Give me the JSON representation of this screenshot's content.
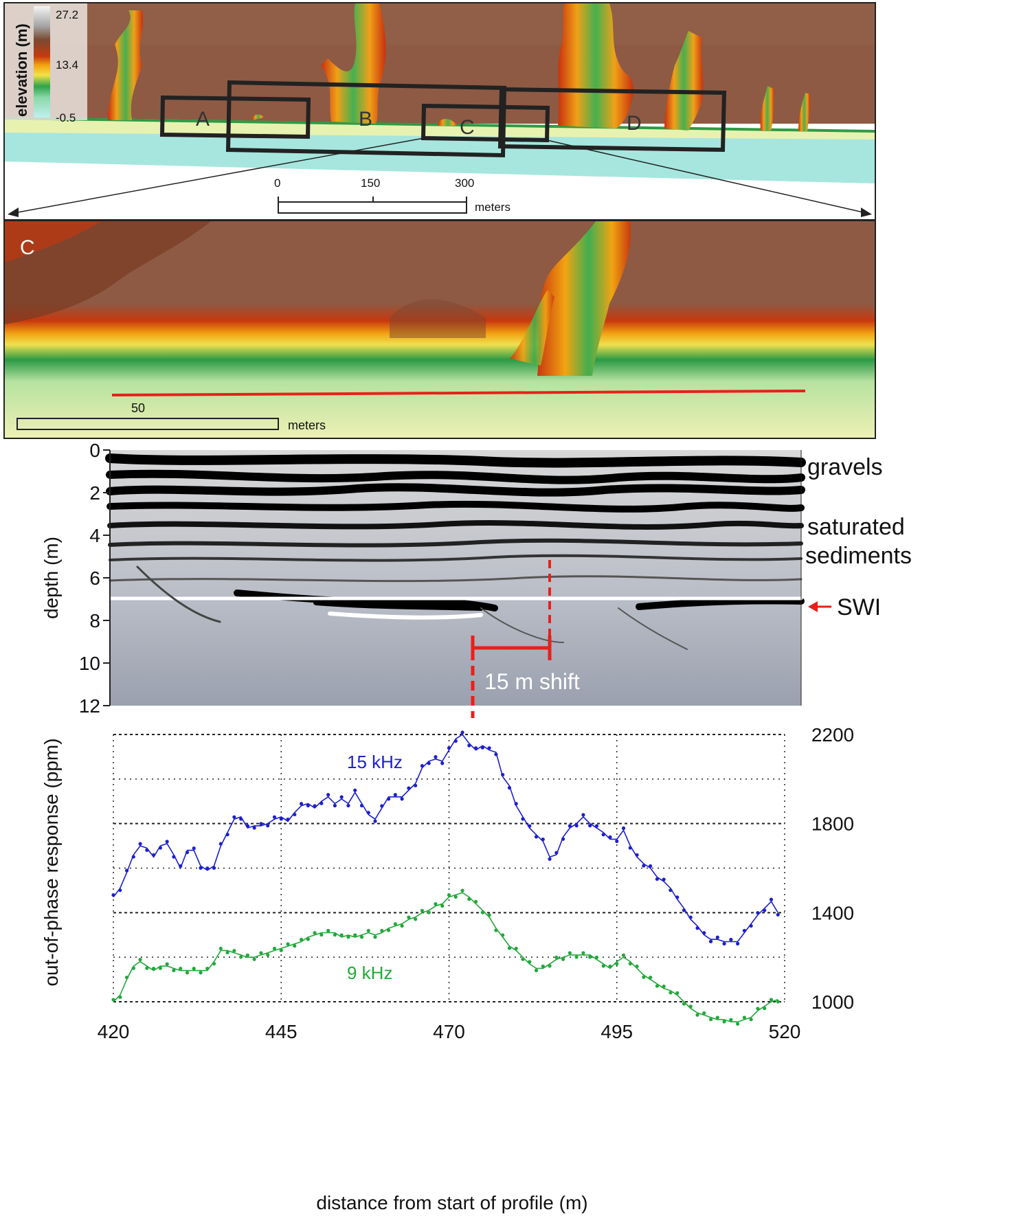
{
  "map_top": {
    "legend": {
      "title": "elevation (m)",
      "max_label": "27.2",
      "mid_label": "13.4",
      "min_label": "-0.5"
    },
    "boxes": [
      "A",
      "B",
      "C",
      "D"
    ],
    "scalebar": {
      "ticks": [
        "0",
        "150",
        "300"
      ],
      "unit": "meters"
    }
  },
  "map_zoom": {
    "panel_label": "C",
    "scalebar": {
      "value": "50",
      "unit": "meters"
    }
  },
  "gpr": {
    "ylabel": "depth (m)",
    "yticks": [
      "0",
      "2",
      "4",
      "6",
      "8",
      "10",
      "12"
    ],
    "annotations": {
      "gravels": "gravels",
      "saturated_1": "saturated",
      "saturated_2": "sediments",
      "swi": "SWI",
      "shift": "15 m shift"
    }
  },
  "chart_data": {
    "type": "line",
    "xlabel": "distance from start of profile (m)",
    "ylabel": "out-of-phase response (ppm)",
    "xlim": [
      420,
      520
    ],
    "ylim": [
      1000,
      2200
    ],
    "xticks": [
      "420",
      "445",
      "470",
      "495",
      "520"
    ],
    "yticks": [
      "2200",
      "1800",
      "1400",
      "1000"
    ],
    "grid": true,
    "series": [
      {
        "name": "15 kHz",
        "color": "#1c1fd0",
        "x": [
          420,
          421,
          422,
          423,
          424,
          425,
          426,
          427,
          428,
          429,
          430,
          431,
          432,
          433,
          434,
          435,
          436,
          437,
          438,
          439,
          440,
          441,
          442,
          443,
          444,
          445,
          446,
          447,
          448,
          449,
          450,
          451,
          452,
          453,
          454,
          455,
          456,
          457,
          458,
          459,
          460,
          461,
          462,
          463,
          464,
          465,
          466,
          467,
          468,
          469,
          470,
          471,
          472,
          473,
          474,
          475,
          476,
          477,
          478,
          479,
          480,
          481,
          482,
          483,
          484,
          485,
          486,
          487,
          488,
          489,
          490,
          491,
          492,
          493,
          494,
          495,
          496,
          497,
          498,
          499,
          500,
          501,
          502,
          503,
          504,
          505,
          506,
          507,
          508,
          509,
          510,
          511,
          512,
          513,
          514,
          515,
          516,
          517,
          518,
          519
        ],
        "values": [
          1470,
          1510,
          1580,
          1660,
          1700,
          1690,
          1650,
          1700,
          1710,
          1660,
          1600,
          1680,
          1680,
          1610,
          1590,
          1610,
          1700,
          1760,
          1820,
          1830,
          1780,
          1790,
          1790,
          1800,
          1820,
          1830,
          1810,
          1850,
          1880,
          1890,
          1870,
          1900,
          1920,
          1890,
          1910,
          1890,
          1940,
          1890,
          1840,
          1820,
          1870,
          1920,
          1920,
          1920,
          1950,
          1980,
          2050,
          2080,
          2090,
          2080,
          2130,
          2180,
          2200,
          2160,
          2130,
          2150,
          2130,
          2120,
          2010,
          1970,
          1880,
          1830,
          1780,
          1750,
          1720,
          1650,
          1660,
          1740,
          1780,
          1800,
          1830,
          1800,
          1780,
          1760,
          1730,
          1730,
          1770,
          1700,
          1650,
          1620,
          1600,
          1560,
          1540,
          1510,
          1460,
          1420,
          1370,
          1340,
          1300,
          1280,
          1280,
          1270,
          1270,
          1270,
          1310,
          1350,
          1390,
          1420,
          1450,
          1400
        ],
        "label": "15 kHz"
      },
      {
        "name": "9 kHz",
        "color": "#22a83a",
        "x": [
          420,
          421,
          422,
          423,
          424,
          425,
          426,
          427,
          428,
          429,
          430,
          431,
          432,
          433,
          434,
          435,
          436,
          437,
          438,
          439,
          440,
          441,
          442,
          443,
          444,
          445,
          446,
          447,
          448,
          449,
          450,
          451,
          452,
          453,
          454,
          455,
          456,
          457,
          458,
          459,
          460,
          461,
          462,
          463,
          464,
          465,
          466,
          467,
          468,
          469,
          470,
          471,
          472,
          473,
          474,
          475,
          476,
          477,
          478,
          479,
          480,
          481,
          482,
          483,
          484,
          485,
          486,
          487,
          488,
          489,
          490,
          491,
          492,
          493,
          494,
          495,
          496,
          497,
          498,
          499,
          500,
          501,
          502,
          503,
          504,
          505,
          506,
          507,
          508,
          509,
          510,
          511,
          512,
          513,
          514,
          515,
          516,
          517,
          518,
          519
        ],
        "values": [
          1000,
          1030,
          1100,
          1160,
          1180,
          1160,
          1140,
          1160,
          1160,
          1150,
          1140,
          1140,
          1140,
          1140,
          1140,
          1180,
          1230,
          1230,
          1220,
          1210,
          1200,
          1200,
          1210,
          1220,
          1230,
          1240,
          1250,
          1260,
          1270,
          1290,
          1300,
          1310,
          1310,
          1310,
          1290,
          1300,
          1290,
          1300,
          1310,
          1300,
          1310,
          1330,
          1340,
          1350,
          1370,
          1380,
          1400,
          1410,
          1430,
          1440,
          1470,
          1480,
          1490,
          1470,
          1440,
          1410,
          1380,
          1330,
          1290,
          1250,
          1230,
          1200,
          1170,
          1150,
          1150,
          1170,
          1190,
          1200,
          1210,
          1210,
          1210,
          1210,
          1190,
          1170,
          1150,
          1180,
          1200,
          1180,
          1150,
          1120,
          1100,
          1080,
          1060,
          1050,
          1030,
          1000,
          970,
          950,
          940,
          930,
          920,
          920,
          910,
          910,
          920,
          930,
          960,
          980,
          1000,
          1010
        ],
        "label": "9 kHz"
      }
    ]
  }
}
